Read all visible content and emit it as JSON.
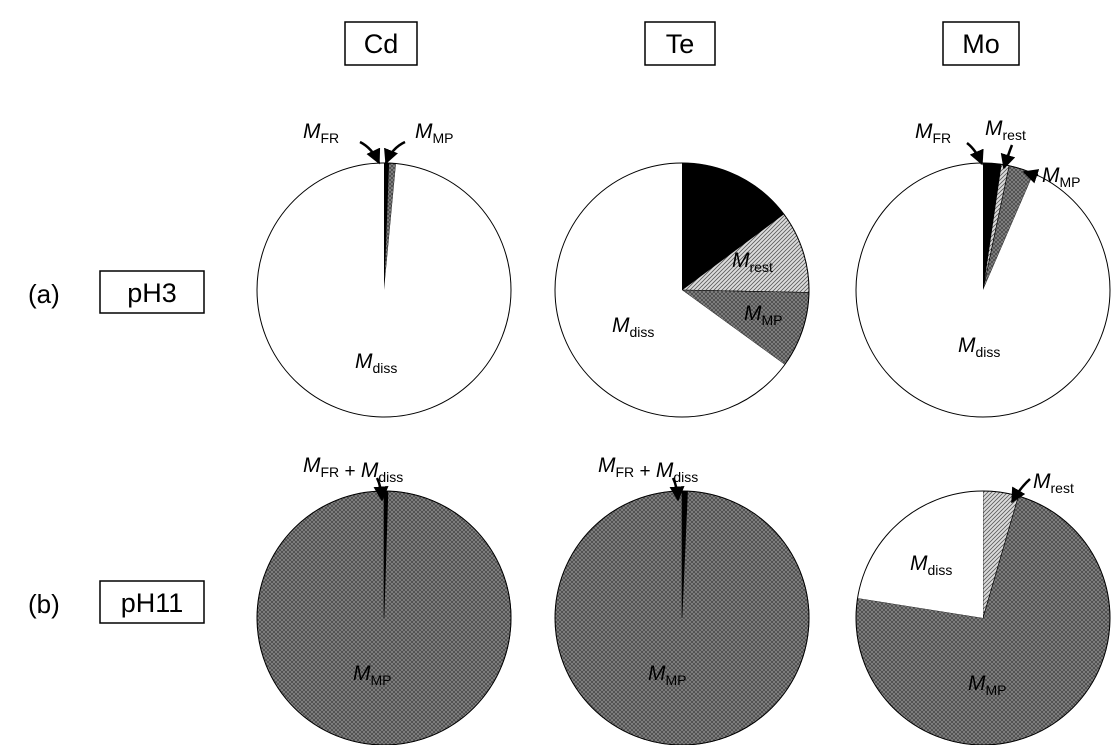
{
  "columns": [
    "Cd",
    "Te",
    "Mo"
  ],
  "rows": [
    {
      "tag": "(a)",
      "label": "pH3"
    },
    {
      "tag": "(b)",
      "label": "pH11"
    }
  ],
  "legend": {
    "M_FR": "black",
    "M_rest": "light-hatch",
    "M_MP": "dark-crosshatch",
    "M_diss": "white"
  },
  "chart_data": [
    {
      "type": "pie",
      "element": "Cd",
      "condition": "pH3",
      "slices": [
        {
          "name": "M_FR",
          "pct": 0.6,
          "fill": "fr"
        },
        {
          "name": "M_MP",
          "pct": 0.9,
          "fill": "mp"
        },
        {
          "name": "M_diss",
          "pct": 98.5,
          "fill": "diss"
        }
      ]
    },
    {
      "type": "pie",
      "element": "Te",
      "condition": "pH3",
      "slices": [
        {
          "name": "M_FR",
          "pct": 14.8,
          "fill": "fr"
        },
        {
          "name": "M_rest",
          "pct": 10.5,
          "fill": "rest"
        },
        {
          "name": "M_MP",
          "pct": 9.7,
          "fill": "mp"
        },
        {
          "name": "M_diss",
          "pct": 65.0,
          "fill": "diss"
        }
      ]
    },
    {
      "type": "pie",
      "element": "Mo",
      "condition": "pH3",
      "slices": [
        {
          "name": "M_FR",
          "pct": 2.3,
          "fill": "fr"
        },
        {
          "name": "M_rest",
          "pct": 1.0,
          "fill": "rest"
        },
        {
          "name": "M_MP",
          "pct": 3.2,
          "fill": "mp"
        },
        {
          "name": "M_diss",
          "pct": 93.5,
          "fill": "diss"
        }
      ]
    },
    {
      "type": "pie",
      "element": "Cd",
      "condition": "pH11",
      "slices": [
        {
          "name": "M_FR + M_diss",
          "pct": 0.5,
          "fill": "fr"
        },
        {
          "name": "M_MP",
          "pct": 99.5,
          "fill": "mp"
        }
      ]
    },
    {
      "type": "pie",
      "element": "Te",
      "condition": "pH11",
      "slices": [
        {
          "name": "M_FR + M_diss",
          "pct": 0.7,
          "fill": "fr"
        },
        {
          "name": "M_MP",
          "pct": 99.3,
          "fill": "mp"
        }
      ]
    },
    {
      "type": "pie",
      "element": "Mo",
      "condition": "pH11",
      "slices": [
        {
          "name": "M_rest",
          "pct": 4.5,
          "fill": "rest"
        },
        {
          "name": "M_MP",
          "pct": 73.0,
          "fill": "mp"
        },
        {
          "name": "M_diss",
          "pct": 22.5,
          "fill": "diss"
        }
      ]
    }
  ]
}
